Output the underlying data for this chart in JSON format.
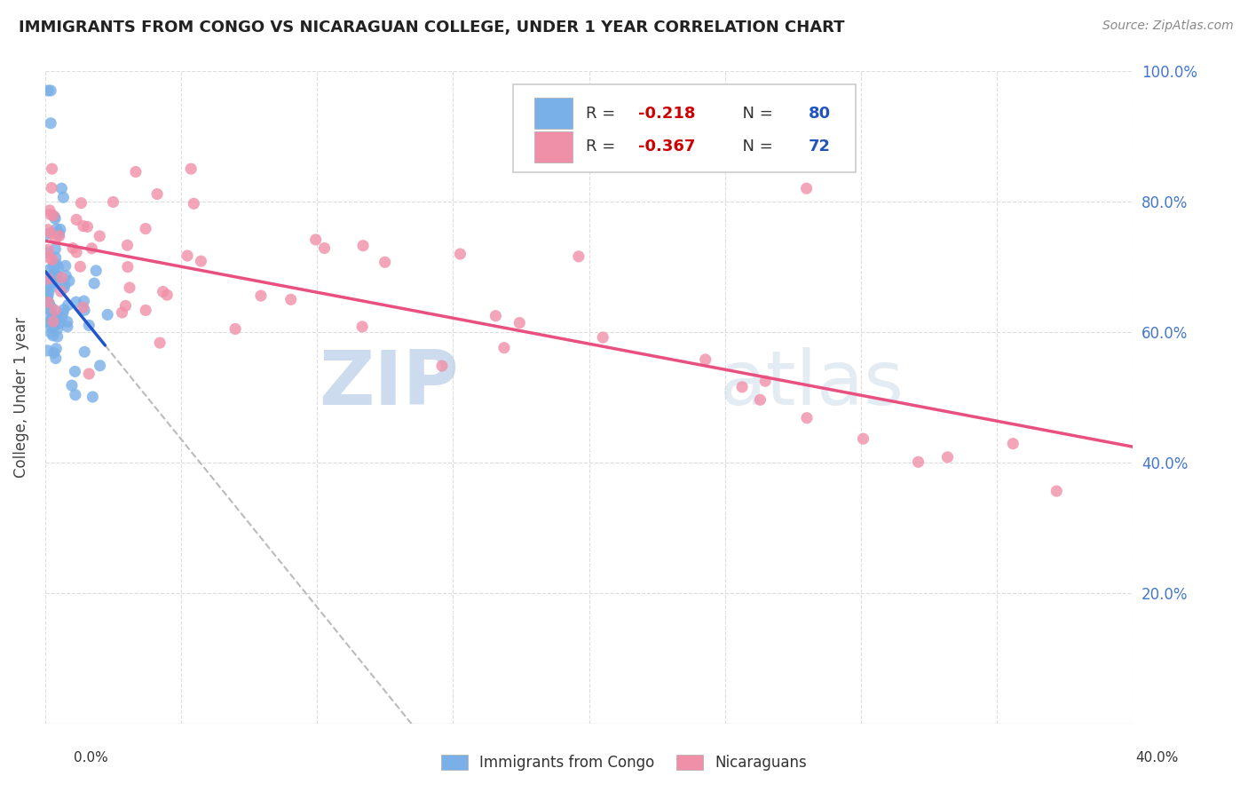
{
  "title": "IMMIGRANTS FROM CONGO VS NICARAGUAN COLLEGE, UNDER 1 YEAR CORRELATION CHART",
  "source": "Source: ZipAtlas.com",
  "ylabel": "College, Under 1 year",
  "background_color": "#ffffff",
  "grid_color": "#dddddd",
  "watermark_zip": "ZIP",
  "watermark_atlas": "atlas",
  "congo_scatter_color": "#7ab0e8",
  "nicaraguan_scatter_color": "#f090a8",
  "congo_line_color": "#2255cc",
  "nicaraguan_line_color": "#e85080",
  "trend_dashed_color": "#bbbbbb",
  "congo_R": -0.218,
  "congo_N": 80,
  "nicaraguan_R": -0.367,
  "nicaraguan_N": 72,
  "congo_legend_color": "#7ab0e8",
  "nicaraguan_legend_color": "#f090a8",
  "r_value_color": "#cc0000",
  "n_value_color": "#2255bb",
  "xlim": [
    0.0,
    0.4
  ],
  "ylim": [
    0.0,
    1.0
  ],
  "right_ytick_labels": [
    "",
    "20.0%",
    "40.0%",
    "60.0%",
    "80.0%",
    "100.0%"
  ],
  "right_ytick_color": "#4477cc"
}
